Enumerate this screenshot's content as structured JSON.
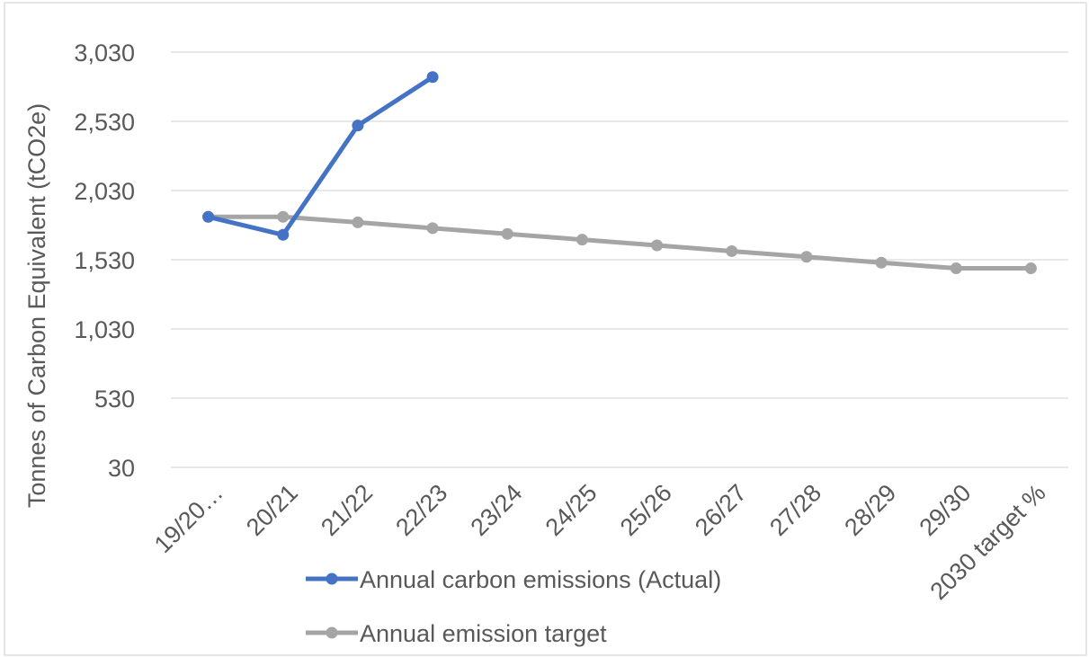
{
  "chart_data": {
    "type": "line",
    "title": "",
    "xlabel": "",
    "ylabel": "Tonnes of Carbon Equivalent (tCO2e)",
    "categories": [
      "19/20…",
      "20/21",
      "21/22",
      "22/23",
      "23/24",
      "24/25",
      "25/26",
      "26/27",
      "27/28",
      "28/29",
      "29/30",
      "2030 target %"
    ],
    "y_ticks": [
      "30",
      "530",
      "1,030",
      "1,530",
      "2,030",
      "2,530",
      "3,030"
    ],
    "ylim": [
      30,
      3030
    ],
    "grid": true,
    "legend_position": "bottom",
    "series": [
      {
        "name": "Annual carbon emissions (Actual)",
        "color": "#4472c4",
        "values": [
          1840,
          1710,
          2500,
          2850,
          null,
          null,
          null,
          null,
          null,
          null,
          null,
          null
        ]
      },
      {
        "name": "Annual emission target",
        "color": "#a5a5a5",
        "values": [
          1840,
          1840,
          1800,
          1758,
          1717,
          1675,
          1634,
          1592,
          1551,
          1509,
          1468,
          1468
        ]
      }
    ]
  }
}
